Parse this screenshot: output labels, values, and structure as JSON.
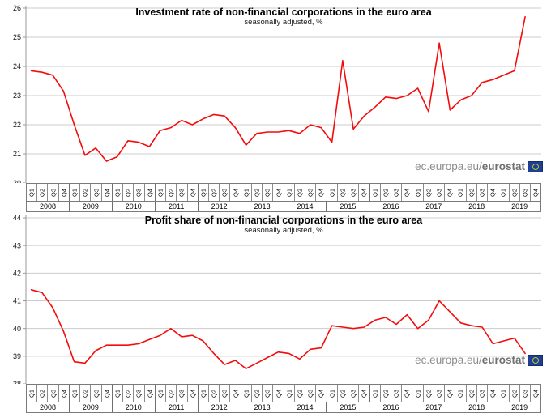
{
  "watermark": {
    "text_regular": "ec.europa.eu/",
    "text_bold": "eurostat",
    "logo": "eurostat-eu-flag-logo"
  },
  "colors": {
    "line": "#f40b0b",
    "grid": "#cccccc",
    "axis": "#999999",
    "table_border": "#7a7a7a",
    "watermark_gray": "#8c8c8c",
    "watermark_dark_gray": "#707070",
    "logo_blue": "#1e3f94",
    "logo_ring_yellow_green": "#b8c42e"
  },
  "x_axis": {
    "years": [
      "2008",
      "2009",
      "2010",
      "2011",
      "2012",
      "2013",
      "2014",
      "2015",
      "2016",
      "2017",
      "2018",
      "2019"
    ],
    "quarters_per_year": [
      "Q1",
      "Q2",
      "Q3",
      "Q4"
    ],
    "total_slots": 48
  },
  "charts": [
    {
      "id": "investment-rate",
      "title": "Investment rate of non-financial corporations in the euro area",
      "subtitle": "seasonally adjusted, %",
      "chart_data": {
        "type": "line",
        "unit": "%",
        "legend_position": "none",
        "grid": "horizontal",
        "ylim": [
          20,
          26
        ],
        "yticks": [
          26,
          25,
          24,
          23,
          22,
          21,
          20
        ],
        "x": [
          "2008Q1",
          "2008Q2",
          "2008Q3",
          "2008Q4",
          "2009Q1",
          "2009Q2",
          "2009Q3",
          "2009Q4",
          "2010Q1",
          "2010Q2",
          "2010Q3",
          "2010Q4",
          "2011Q1",
          "2011Q2",
          "2011Q3",
          "2011Q4",
          "2012Q1",
          "2012Q2",
          "2012Q3",
          "2012Q4",
          "2013Q1",
          "2013Q2",
          "2013Q3",
          "2013Q4",
          "2014Q1",
          "2014Q2",
          "2014Q3",
          "2014Q4",
          "2015Q1",
          "2015Q2",
          "2015Q3",
          "2015Q4",
          "2016Q1",
          "2016Q2",
          "2016Q3",
          "2016Q4",
          "2017Q1",
          "2017Q2",
          "2017Q3",
          "2017Q4",
          "2018Q1",
          "2018Q2",
          "2018Q3",
          "2018Q4",
          "2019Q1",
          "2019Q2",
          "2019Q3"
        ],
        "values": [
          23.85,
          23.8,
          23.7,
          23.15,
          22.0,
          20.95,
          21.2,
          20.75,
          20.9,
          21.45,
          21.4,
          21.25,
          21.8,
          21.9,
          22.15,
          22.0,
          22.2,
          22.35,
          22.3,
          21.9,
          21.3,
          21.7,
          21.75,
          21.75,
          21.8,
          21.7,
          22.0,
          21.9,
          21.4,
          24.2,
          21.85,
          22.3,
          22.6,
          22.95,
          22.9,
          23.0,
          23.25,
          22.45,
          24.8,
          22.5,
          22.85,
          23.0,
          23.45,
          23.55,
          23.7,
          23.85,
          25.7
        ]
      }
    },
    {
      "id": "profit-share",
      "title": "Profit share of non-financial corporations in the euro area",
      "subtitle": "seasonally adjusted, %",
      "chart_data": {
        "type": "line",
        "unit": "%",
        "legend_position": "none",
        "grid": "horizontal",
        "ylim": [
          38,
          44
        ],
        "yticks": [
          44,
          43,
          42,
          41,
          40,
          39,
          38
        ],
        "x": [
          "2008Q1",
          "2008Q2",
          "2008Q3",
          "2008Q4",
          "2009Q1",
          "2009Q2",
          "2009Q3",
          "2009Q4",
          "2010Q1",
          "2010Q2",
          "2010Q3",
          "2010Q4",
          "2011Q1",
          "2011Q2",
          "2011Q3",
          "2011Q4",
          "2012Q1",
          "2012Q2",
          "2012Q3",
          "2012Q4",
          "2013Q1",
          "2013Q2",
          "2013Q3",
          "2013Q4",
          "2014Q1",
          "2014Q2",
          "2014Q3",
          "2014Q4",
          "2015Q1",
          "2015Q2",
          "2015Q3",
          "2015Q4",
          "2016Q1",
          "2016Q2",
          "2016Q3",
          "2016Q4",
          "2017Q1",
          "2017Q2",
          "2017Q3",
          "2017Q4",
          "2018Q1",
          "2018Q2",
          "2018Q3",
          "2018Q4",
          "2019Q1",
          "2019Q2",
          "2019Q3"
        ],
        "values": [
          41.4,
          41.3,
          40.75,
          39.9,
          38.8,
          38.75,
          39.2,
          39.4,
          39.4,
          39.4,
          39.45,
          39.6,
          39.75,
          40.0,
          39.7,
          39.75,
          39.55,
          39.1,
          38.7,
          38.85,
          38.55,
          38.75,
          38.95,
          39.15,
          39.1,
          38.9,
          39.25,
          39.3,
          40.1,
          40.05,
          40.0,
          40.05,
          40.3,
          40.4,
          40.15,
          40.5,
          40.0,
          40.3,
          41.0,
          40.6,
          40.2,
          40.1,
          40.05,
          39.45,
          39.55,
          39.65,
          39.1
        ]
      }
    }
  ]
}
